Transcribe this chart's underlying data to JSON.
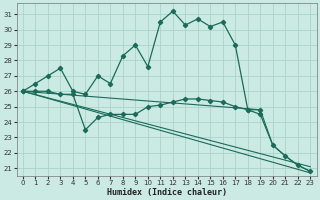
{
  "xlabel": "Humidex (Indice chaleur)",
  "bg_color": "#cceae4",
  "grid_color": "#aad4cc",
  "line_color": "#1a6b5a",
  "xlim": [
    -0.5,
    23.5
  ],
  "ylim": [
    20.5,
    31.7
  ],
  "xticks": [
    0,
    1,
    2,
    3,
    4,
    5,
    6,
    7,
    8,
    9,
    10,
    11,
    12,
    13,
    14,
    15,
    16,
    17,
    18,
    19,
    20,
    21,
    22,
    23
  ],
  "yticks": [
    21,
    22,
    23,
    24,
    25,
    26,
    27,
    28,
    29,
    30,
    31
  ],
  "curves": [
    {
      "x": [
        0,
        1,
        2,
        3,
        4,
        5,
        6,
        7,
        8,
        9,
        10,
        11,
        12,
        13,
        14,
        15,
        16,
        17,
        18,
        19
      ],
      "y": [
        26.0,
        26.5,
        27.0,
        27.5,
        26.0,
        25.8,
        27.0,
        26.5,
        28.3,
        29.0,
        27.6,
        30.5,
        31.2,
        30.3,
        30.7,
        30.2,
        30.5,
        29.0,
        24.8,
        24.8
      ],
      "markers": true
    },
    {
      "x": [
        0,
        1,
        2,
        3,
        4,
        5,
        6,
        7,
        8,
        9,
        10,
        11,
        12,
        13,
        14,
        15,
        16,
        17,
        18,
        19,
        20,
        21,
        22,
        23
      ],
      "y": [
        26.0,
        26.0,
        26.0,
        25.8,
        25.8,
        23.5,
        24.3,
        24.5,
        24.5,
        24.5,
        25.0,
        25.1,
        25.3,
        25.5,
        25.5,
        25.4,
        25.3,
        25.0,
        24.8,
        24.5,
        22.5,
        21.8,
        21.2,
        20.8
      ],
      "markers": true
    },
    {
      "x": [
        0,
        19,
        20,
        21,
        22,
        23
      ],
      "y": [
        26.0,
        24.8,
        22.5,
        21.8,
        21.2,
        20.8
      ],
      "markers": false
    },
    {
      "x": [
        0,
        23
      ],
      "y": [
        26.0,
        20.7
      ],
      "markers": false
    },
    {
      "x": [
        0,
        23
      ],
      "y": [
        26.0,
        21.1
      ],
      "markers": false
    }
  ]
}
